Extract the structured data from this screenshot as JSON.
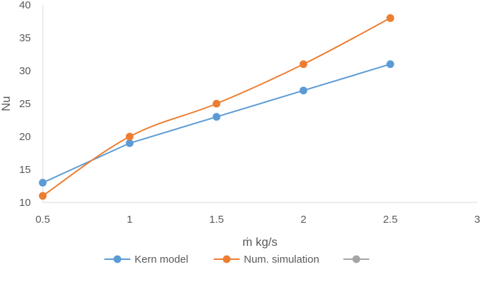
{
  "chart_data": {
    "type": "line",
    "xlabel": "ṁ kg/s",
    "ylabel": "Nu",
    "xlim": [
      0.5,
      3
    ],
    "ylim": [
      10,
      40
    ],
    "xticks": [
      "0.5",
      "1",
      "1.5",
      "2",
      "2.5",
      "3"
    ],
    "yticks": [
      "10",
      "15",
      "20",
      "25",
      "30",
      "35",
      "40"
    ],
    "grid": false,
    "legend_position": "bottom",
    "series": [
      {
        "name": "Kern model",
        "color": "#5B9BD5",
        "x": [
          0.5,
          1,
          1.5,
          2,
          2.5
        ],
        "y": [
          13,
          19,
          23,
          27,
          31
        ],
        "smooth": false
      },
      {
        "name": "Num. simulation",
        "color": "#ED7D31",
        "x": [
          0.5,
          1,
          1.5,
          2,
          2.5
        ],
        "y": [
          11,
          20,
          25,
          31,
          38
        ],
        "smooth": true
      },
      {
        "name": "",
        "color": "#A5A5A5",
        "x": [],
        "y": [],
        "smooth": false
      }
    ]
  }
}
